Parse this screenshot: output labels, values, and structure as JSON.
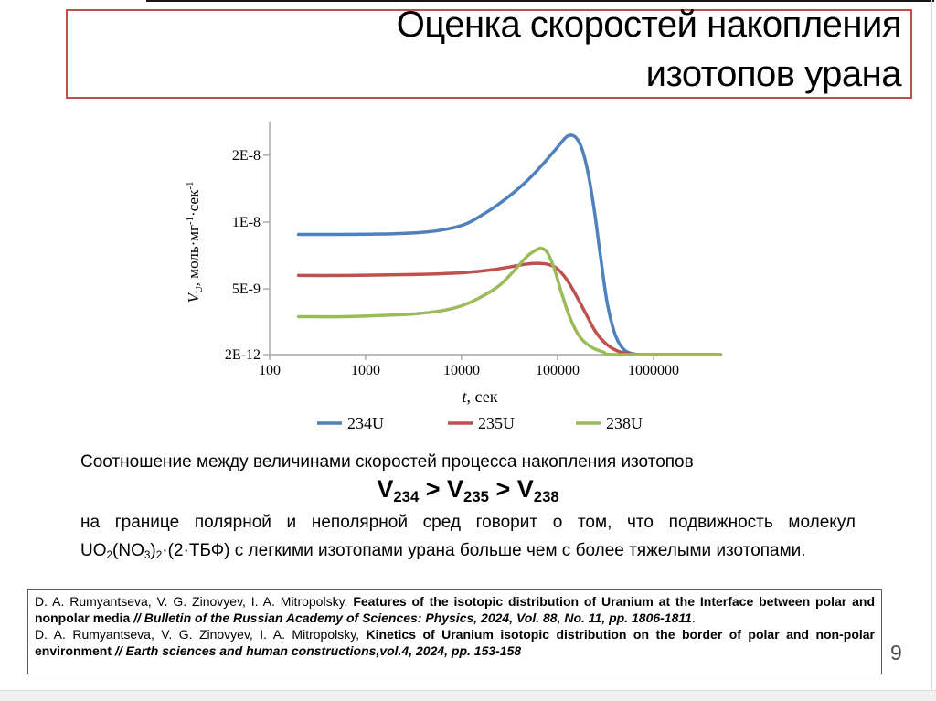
{
  "title": {
    "lines": [
      "Оценка скоростей накопления",
      "изотопов урана"
    ],
    "border_color": "#c0504d"
  },
  "chart_data": {
    "type": "line",
    "title": "",
    "x_axis": {
      "label_parts": [
        {
          "t": "t",
          "style": "italic"
        },
        {
          "t": ", сек",
          "style": ""
        }
      ],
      "scale": "log",
      "ticks": [
        "100",
        "1000",
        "10000",
        "100000",
        "1000000"
      ],
      "tick_values": [
        100,
        1000,
        10000,
        100000,
        1000000
      ],
      "range": [
        100,
        5000000
      ]
    },
    "y_axis": {
      "label_parts": [
        {
          "t": "V",
          "style": "italic"
        },
        {
          "t": "U",
          "style": "sub"
        },
        {
          "t": ", моль·мг",
          "style": ""
        },
        {
          "t": "-1",
          "style": "sup"
        },
        {
          "t": "·сек",
          "style": ""
        },
        {
          "t": "-1",
          "style": "sup"
        }
      ],
      "scale": "log",
      "ticks": [
        {
          "label": "2E-8",
          "value": 2e-08
        },
        {
          "label": "1E-8",
          "value": 1e-08
        },
        {
          "label": "5E-9",
          "value": 5e-09
        },
        {
          "label": "2E-12",
          "value": 2e-12
        }
      ]
    },
    "legend": [
      "234U",
      "235U",
      "238U"
    ],
    "legend_position": "bottom",
    "grid": false,
    "axis_color": "#a6a6a6",
    "series": [
      {
        "name": "234U",
        "color": "#4F81BD",
        "points": [
          [
            200,
            8.8e-09
          ],
          [
            500,
            8.8e-09
          ],
          [
            1000,
            8.82e-09
          ],
          [
            2000,
            8.87e-09
          ],
          [
            4000,
            9e-09
          ],
          [
            7000,
            9.3e-09
          ],
          [
            11000,
            9.8e-09
          ],
          [
            16000,
            1.07e-08
          ],
          [
            24000,
            1.2e-08
          ],
          [
            35000,
            1.36e-08
          ],
          [
            50000,
            1.56e-08
          ],
          [
            70000,
            1.82e-08
          ],
          [
            95000,
            2.12e-08
          ],
          [
            130000,
            2.45e-08
          ],
          [
            165000,
            2.32e-08
          ],
          [
            200000,
            1.8e-08
          ],
          [
            240000,
            1.15e-08
          ],
          [
            280000,
            7e-09
          ],
          [
            330000,
            4.3e-09
          ],
          [
            400000,
            3.1e-09
          ],
          [
            500000,
            2.65e-09
          ],
          [
            700000,
            2.4e-09
          ],
          [
            1000000,
            2e-12
          ],
          [
            5000000,
            2e-12
          ]
        ]
      },
      {
        "name": "235U",
        "color": "#C0504D",
        "points": [
          [
            200,
            5.75e-09
          ],
          [
            600,
            5.75e-09
          ],
          [
            1500,
            5.78e-09
          ],
          [
            4000,
            5.82e-09
          ],
          [
            8000,
            5.88e-09
          ],
          [
            14000,
            5.98e-09
          ],
          [
            22000,
            6.12e-09
          ],
          [
            33000,
            6.3e-09
          ],
          [
            45000,
            6.45e-09
          ],
          [
            60000,
            6.52e-09
          ],
          [
            80000,
            6.45e-09
          ],
          [
            100000,
            6.15e-09
          ],
          [
            125000,
            5.5e-09
          ],
          [
            155000,
            4.7e-09
          ],
          [
            195000,
            3.9e-09
          ],
          [
            250000,
            3.2e-09
          ],
          [
            330000,
            2.8e-09
          ],
          [
            450000,
            2.6e-09
          ],
          [
            650000,
            2.45e-09
          ],
          [
            900000,
            2e-12
          ],
          [
            5000000,
            2e-12
          ]
        ]
      },
      {
        "name": "238U",
        "color": "#9BBB59",
        "points": [
          [
            200,
            3.75e-09
          ],
          [
            600,
            3.75e-09
          ],
          [
            1500,
            3.8e-09
          ],
          [
            3000,
            3.85e-09
          ],
          [
            6000,
            3.98e-09
          ],
          [
            10000,
            4.2e-09
          ],
          [
            16000,
            4.6e-09
          ],
          [
            25000,
            5.2e-09
          ],
          [
            36000,
            6.1e-09
          ],
          [
            48000,
            7e-09
          ],
          [
            60000,
            7.5e-09
          ],
          [
            68000,
            7.62e-09
          ],
          [
            78000,
            7.3e-09
          ],
          [
            92000,
            6.2e-09
          ],
          [
            110000,
            4.8e-09
          ],
          [
            135000,
            3.7e-09
          ],
          [
            170000,
            3.05e-09
          ],
          [
            220000,
            2.75e-09
          ],
          [
            300000,
            2.6e-09
          ],
          [
            420000,
            2e-12
          ],
          [
            5000000,
            2e-12
          ]
        ]
      }
    ]
  },
  "body": {
    "line1": "Соотношение между величинами скоростей процесса накопления изотопов",
    "formula_parts": [
      {
        "t": "V",
        "style": ""
      },
      {
        "t": "234",
        "style": "sub"
      },
      {
        "t": " > ",
        "style": ""
      },
      {
        "t": "V",
        "style": ""
      },
      {
        "t": "235",
        "style": "sub"
      },
      {
        "t": " > ",
        "style": ""
      },
      {
        "t": "V",
        "style": ""
      },
      {
        "t": "238",
        "style": "sub"
      }
    ],
    "paragraph_parts": [
      {
        "t": "на границе полярной и неполярной сред говорит о том, что подвижность молекул UO",
        "style": ""
      },
      {
        "t": "2",
        "style": "sub"
      },
      {
        "t": "(NO",
        "style": ""
      },
      {
        "t": "3",
        "style": "sub"
      },
      {
        "t": ")",
        "style": ""
      },
      {
        "t": "2",
        "style": "sub"
      },
      {
        "t": "·(2·ТБФ) с легкими изотопами урана больше чем с более тяжелыми изотопами.",
        "style": ""
      }
    ]
  },
  "references": {
    "items": [
      {
        "parts": [
          {
            "t": "D. A. Rumyantseva, V. G. Zinovyev, I. A. Mitropolsky, ",
            "style": ""
          },
          {
            "t": "Features of the isotopic distribution of Uranium at the Interface between polar and nonpolar media ",
            "style": "b"
          },
          {
            "t": "// Bulletin of the Russian Academy of Sciences: Physics, 2024, Vol. 88, No. 11, pp. 1806-1811",
            "style": "bi"
          },
          {
            "t": ".",
            "style": ""
          }
        ]
      },
      {
        "parts": [
          {
            "t": "D. A. Rumyantseva, V. G. Zinovyev, I. A. Mitropolsky, ",
            "style": ""
          },
          {
            "t": "Kinetics of Uranium isotopic distribution on the border of polar and non-polar environment ",
            "style": "b"
          },
          {
            "t": "// Earth sciences and human constructions,vol.4, 2024, pp. 153-158",
            "style": "bi"
          }
        ]
      }
    ]
  },
  "slide": {
    "page_number": "9"
  }
}
